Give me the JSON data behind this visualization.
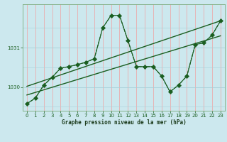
{
  "title": "Graphe pression niveau de la mer (hPa)",
  "background_color": "#cce8ee",
  "grid_color_v": "#f0a0a0",
  "grid_color_h": "#a8d0d8",
  "line_color": "#1a5e20",
  "xlim": [
    -0.5,
    23.5
  ],
  "ylim": [
    1029.4,
    1032.1
  ],
  "yticks": [
    1030,
    1031
  ],
  "xticks": [
    0,
    1,
    2,
    3,
    4,
    5,
    6,
    7,
    8,
    9,
    10,
    11,
    12,
    13,
    14,
    15,
    16,
    17,
    18,
    19,
    20,
    21,
    22,
    23
  ],
  "series_plus_x": [
    0,
    1,
    2,
    3,
    4,
    5,
    6,
    7,
    8,
    9,
    10,
    11,
    12,
    13,
    14,
    15,
    16,
    17,
    18,
    19,
    20,
    21,
    22,
    23
  ],
  "series_plus_y": [
    1029.58,
    1029.72,
    1030.05,
    1030.25,
    1030.48,
    1030.52,
    1030.57,
    1030.63,
    1030.72,
    1031.5,
    1031.82,
    1031.82,
    1031.18,
    1030.52,
    1030.52,
    1030.52,
    1030.28,
    1029.88,
    1030.05,
    1030.28,
    1031.08,
    1031.12,
    1031.32,
    1031.68
  ],
  "series_diamond_x": [
    0,
    1,
    2,
    3,
    4,
    5,
    6,
    7,
    8,
    9,
    10,
    11,
    12,
    13,
    14,
    15,
    16,
    17,
    18,
    19,
    20,
    21,
    22,
    23
  ],
  "series_diamond_y": [
    1029.58,
    1029.72,
    1030.05,
    1030.25,
    1030.48,
    1030.52,
    1030.57,
    1030.63,
    1030.72,
    1031.5,
    1031.82,
    1031.82,
    1031.18,
    1030.52,
    1030.52,
    1030.52,
    1030.28,
    1029.88,
    1030.05,
    1030.28,
    1031.08,
    1031.12,
    1031.32,
    1031.68
  ],
  "trend1_x": [
    0,
    23
  ],
  "trend1_y": [
    1029.8,
    1031.3
  ],
  "trend2_x": [
    0,
    23
  ],
  "trend2_y": [
    1030.02,
    1031.68
  ]
}
